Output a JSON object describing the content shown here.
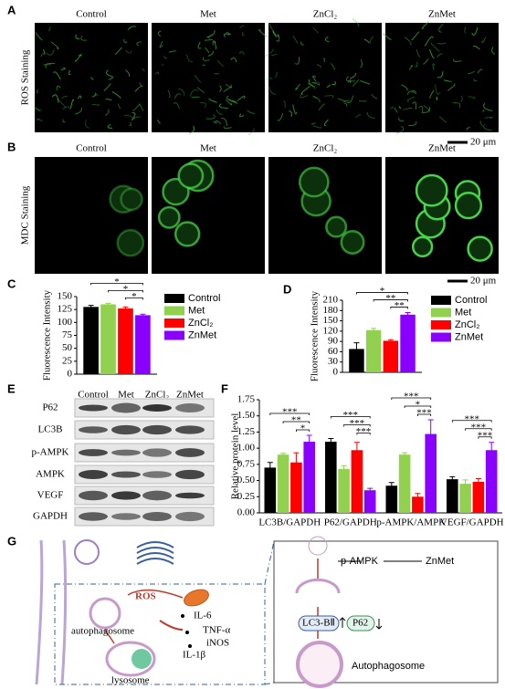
{
  "panel_labels": [
    "A",
    "B",
    "C",
    "D",
    "E",
    "F",
    "G"
  ],
  "panel_a": {
    "columns": [
      "Control",
      "Met",
      "ZnCl₂",
      "ZnMet"
    ],
    "row_label": "ROS Staining",
    "scale_bar": "20 μm"
  },
  "panel_b": {
    "columns": [
      "Control",
      "Met",
      "ZnCl₂",
      "ZnMet"
    ],
    "row_label": "MDC Staining",
    "scale_bar": "20 μm"
  },
  "panel_e": {
    "columns": [
      "Control",
      "Met",
      "ZnCl₂",
      "ZnMet"
    ],
    "rows": [
      "P62",
      "LC3B",
      "p-AMPK",
      "AMPK",
      "VEGF",
      "GAPDH"
    ]
  },
  "panel_g": {
    "autophagosome": "autophagosome",
    "ros": "ROS",
    "cytokines": [
      "IL-6",
      "TNF-α",
      "iNOS",
      "IL-1β"
    ],
    "lysosome": "lysosome",
    "kinase": "p-AMPK",
    "drug": "ZnMet",
    "markers": [
      "LC3-BⅡ",
      "P62"
    ],
    "result": "Autophagosome"
  },
  "chart_data": [
    {
      "type": "bar",
      "ylabel": "Fluorescence Intensity",
      "categories": [
        null
      ],
      "series": [
        {
          "name": "Control",
          "color": "#000000",
          "values": [
            130
          ],
          "errors": [
            3
          ]
        },
        {
          "name": "Met",
          "color": "#92d050",
          "values": [
            135
          ],
          "errors": [
            2
          ]
        },
        {
          "name": "ZnCl₂",
          "color": "#ff0000",
          "values": [
            127
          ],
          "errors": [
            3
          ]
        },
        {
          "name": "ZnMet",
          "color": "#8a00ff",
          "values": [
            114
          ],
          "errors": [
            2
          ]
        }
      ],
      "ylim": [
        0,
        150
      ],
      "yticks": [
        0,
        25,
        50,
        75,
        100,
        125,
        150
      ],
      "legend": "right",
      "significance": [
        [
          "*",
          "*",
          "*"
        ]
      ]
    },
    {
      "type": "bar",
      "ylabel": "Fluorescence Intensity",
      "categories": [
        null
      ],
      "series": [
        {
          "name": "Control",
          "color": "#000000",
          "values": [
            68
          ],
          "errors": [
            18
          ]
        },
        {
          "name": "Met",
          "color": "#92d050",
          "values": [
            123
          ],
          "errors": [
            5
          ]
        },
        {
          "name": "ZnCl₂",
          "color": "#ff0000",
          "values": [
            92
          ],
          "errors": [
            3
          ]
        },
        {
          "name": "ZnMet",
          "color": "#8a00ff",
          "values": [
            168
          ],
          "errors": [
            6
          ]
        }
      ],
      "ylim": [
        0,
        210
      ],
      "yticks": [
        0,
        30,
        60,
        90,
        120,
        150,
        180,
        210
      ],
      "legend": "right",
      "significance": [
        [
          "*",
          "**",
          "**"
        ]
      ]
    },
    {
      "type": "bar",
      "ylabel": "Relative protein level",
      "categories": [
        "LC3B/GAPDH",
        "P62/GAPDH",
        "p-AMPK/AMPK",
        "VEGF/GAPDH"
      ],
      "series": [
        {
          "color": "#000000",
          "values": [
            0.7,
            1.1,
            0.42,
            0.52
          ],
          "errors": [
            0.08,
            0.05,
            0.05,
            0.04
          ]
        },
        {
          "color": "#92d050",
          "values": [
            0.9,
            0.68,
            0.9,
            0.45
          ],
          "errors": [
            0.02,
            0.05,
            0.03,
            0.06
          ]
        },
        {
          "color": "#ff0000",
          "values": [
            0.78,
            0.97,
            0.25,
            0.48
          ],
          "errors": [
            0.15,
            0.12,
            0.05,
            0.05
          ]
        },
        {
          "color": "#8a00ff",
          "values": [
            1.1,
            0.35,
            1.22,
            0.97
          ],
          "errors": [
            0.1,
            0.03,
            0.22,
            0.12
          ]
        }
      ],
      "ylim": [
        0,
        1.75
      ],
      "yticks": [
        {
          "value": 0,
          "label": "0.00"
        },
        0.25,
        {
          "value": 0.5,
          "label": "0.50"
        },
        0.75,
        {
          "value": 1,
          "label": "1.00"
        },
        1.25,
        {
          "value": 1.5,
          "label": "1.50"
        },
        1.75
      ],
      "significance": [
        [
          "***",
          "**",
          "*"
        ],
        [
          "***",
          "***",
          "***"
        ],
        [
          "***",
          "*",
          "***"
        ],
        [
          "***",
          "***",
          "***"
        ]
      ]
    }
  ]
}
